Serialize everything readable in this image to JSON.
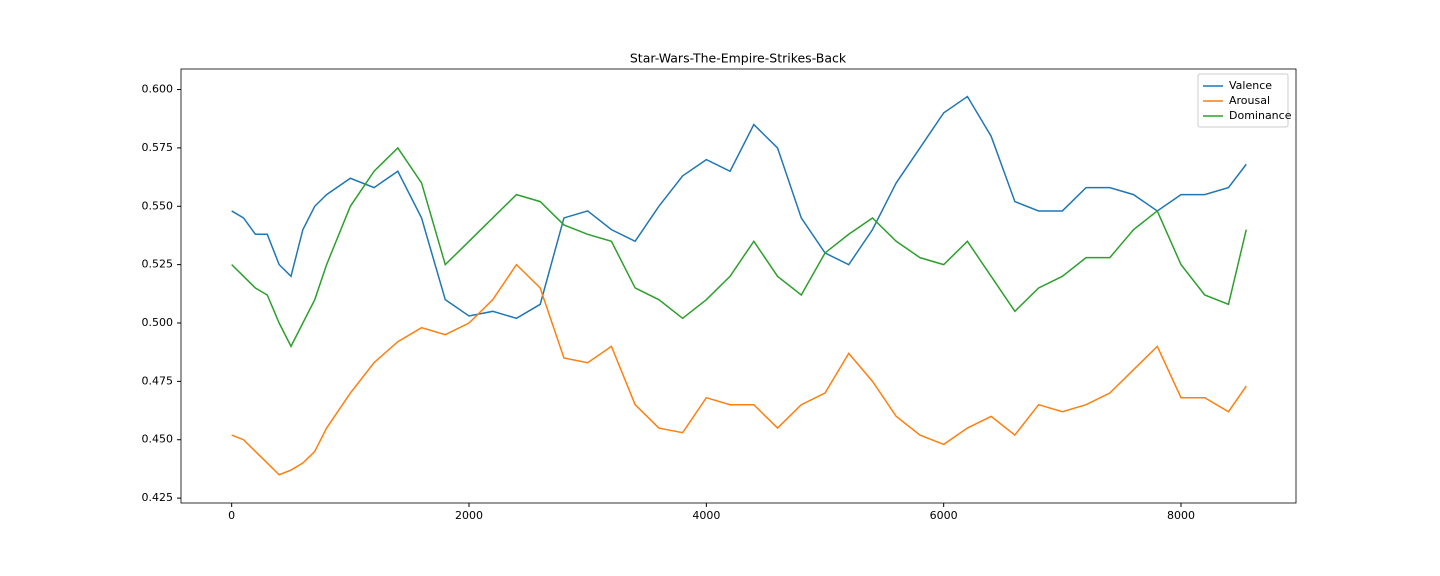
{
  "chart_data": {
    "type": "line",
    "title": "Star-Wars-The-Empire-Strikes-Back",
    "x": [
      0,
      100,
      200,
      300,
      400,
      500,
      600,
      700,
      800,
      1000,
      1200,
      1400,
      1600,
      1800,
      2000,
      2200,
      2400,
      2600,
      2800,
      3000,
      3200,
      3400,
      3600,
      3800,
      4000,
      4200,
      4400,
      4600,
      4800,
      5000,
      5200,
      5400,
      5600,
      5800,
      6000,
      6200,
      6400,
      6600,
      6800,
      7000,
      7200,
      7400,
      7600,
      7800,
      8000,
      8200,
      8400,
      8550
    ],
    "series": [
      {
        "name": "Valence",
        "color": "#1f77b4",
        "values": [
          0.548,
          0.545,
          0.538,
          0.538,
          0.525,
          0.52,
          0.54,
          0.55,
          0.555,
          0.562,
          0.558,
          0.565,
          0.545,
          0.51,
          0.503,
          0.505,
          0.502,
          0.508,
          0.545,
          0.548,
          0.54,
          0.535,
          0.55,
          0.563,
          0.57,
          0.565,
          0.585,
          0.575,
          0.545,
          0.53,
          0.525,
          0.54,
          0.56,
          0.575,
          0.59,
          0.597,
          0.58,
          0.552,
          0.548,
          0.548,
          0.558,
          0.558,
          0.555,
          0.548,
          0.555,
          0.555,
          0.558,
          0.568
        ]
      },
      {
        "name": "Arousal",
        "color": "#ff7f0e",
        "values": [
          0.452,
          0.45,
          0.445,
          0.44,
          0.435,
          0.437,
          0.44,
          0.445,
          0.455,
          0.47,
          0.483,
          0.492,
          0.498,
          0.495,
          0.5,
          0.51,
          0.525,
          0.515,
          0.485,
          0.483,
          0.49,
          0.465,
          0.455,
          0.453,
          0.468,
          0.465,
          0.465,
          0.455,
          0.465,
          0.47,
          0.487,
          0.475,
          0.46,
          0.452,
          0.448,
          0.455,
          0.46,
          0.452,
          0.465,
          0.462,
          0.465,
          0.47,
          0.48,
          0.49,
          0.468,
          0.468,
          0.462,
          0.473
        ]
      },
      {
        "name": "Dominance",
        "color": "#2ca02c",
        "values": [
          0.525,
          0.52,
          0.515,
          0.512,
          0.5,
          0.49,
          0.5,
          0.51,
          0.525,
          0.55,
          0.565,
          0.575,
          0.56,
          0.525,
          0.535,
          0.545,
          0.555,
          0.552,
          0.542,
          0.538,
          0.535,
          0.515,
          0.51,
          0.502,
          0.51,
          0.52,
          0.535,
          0.52,
          0.512,
          0.53,
          0.538,
          0.545,
          0.535,
          0.528,
          0.525,
          0.535,
          0.52,
          0.505,
          0.515,
          0.52,
          0.528,
          0.528,
          0.54,
          0.548,
          0.525,
          0.512,
          0.508,
          0.54
        ]
      }
    ],
    "xlim": [
      -427,
      8969
    ],
    "ylim": [
      0.4229,
      0.6088
    ],
    "xticks": [
      0,
      2000,
      4000,
      6000,
      8000
    ],
    "yticks": [
      0.425,
      {
        "value": 0.45,
        "label": "0.450"
      },
      0.475,
      {
        "value": 0.5,
        "label": "0.500"
      },
      0.525,
      {
        "value": 0.55,
        "label": "0.550"
      },
      0.575,
      {
        "value": 0.6,
        "label": "0.600"
      }
    ],
    "legend": "upper right"
  }
}
